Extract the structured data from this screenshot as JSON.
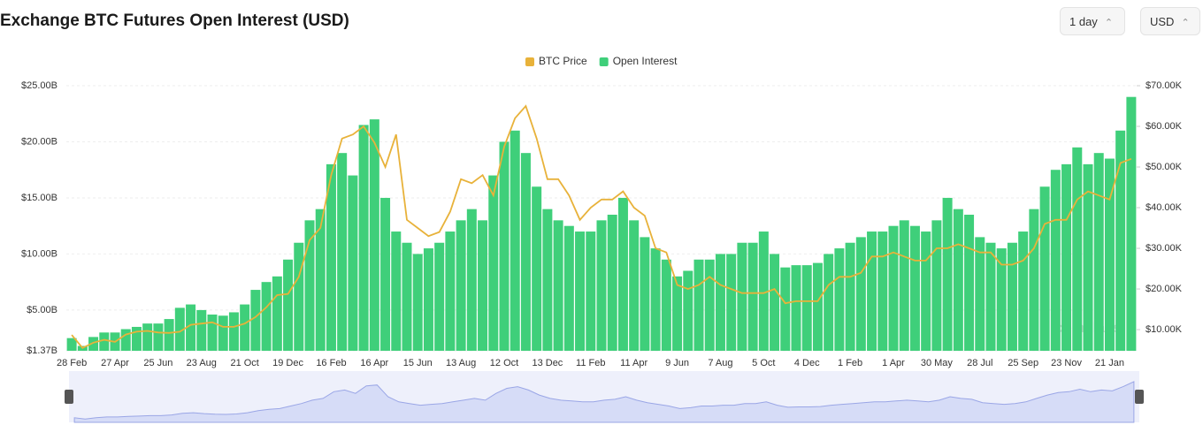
{
  "chart_data": {
    "type": "bar-line",
    "title": "Exchange BTC Futures Open Interest (USD)",
    "controls": {
      "interval": "1 day",
      "currency": "USD"
    },
    "watermark": "coinglass",
    "legend": "top",
    "categories": [
      "28 Feb",
      null,
      null,
      null,
      "27 Apr",
      null,
      null,
      null,
      "25 Jun",
      null,
      null,
      null,
      "23 Aug",
      null,
      null,
      null,
      "21 Oct",
      null,
      null,
      null,
      "19 Dec",
      null,
      null,
      null,
      "16 Feb",
      null,
      null,
      null,
      "16 Apr",
      null,
      null,
      null,
      "15 Jun",
      null,
      null,
      null,
      "13 Aug",
      null,
      null,
      null,
      "12 Oct",
      null,
      null,
      null,
      "13 Dec",
      null,
      null,
      null,
      "11 Feb",
      null,
      null,
      null,
      "11 Apr",
      null,
      null,
      null,
      "9 Jun",
      null,
      null,
      null,
      "7 Aug",
      null,
      null,
      null,
      "5 Oct",
      null,
      null,
      null,
      "4 Dec",
      null,
      null,
      null,
      "1 Feb",
      null,
      null,
      null,
      "1 Apr",
      null,
      null,
      null,
      "30 May",
      null,
      null,
      null,
      "28 Jul",
      null,
      null,
      null,
      "25 Sep",
      null,
      null,
      null,
      "23 Nov",
      null,
      null,
      null,
      "21 Jan",
      null,
      null
    ],
    "series": [
      {
        "name": "BTC Price",
        "color": "#e8b23a",
        "axis": "y2",
        "values": [
          8.7,
          5.5,
          6.8,
          7.5,
          7.0,
          8.8,
          9.5,
          9.7,
          9.3,
          9.2,
          9.5,
          11.2,
          11.5,
          11.8,
          10.7,
          10.7,
          11.5,
          13.1,
          15.5,
          18.5,
          18.8,
          23,
          32,
          35,
          48,
          57,
          58,
          60,
          56,
          50,
          58,
          37,
          35,
          33,
          34,
          39,
          47,
          46,
          48,
          43,
          55,
          62,
          65,
          57,
          47,
          47,
          43,
          37,
          40,
          42,
          42,
          44,
          40,
          38,
          30,
          29,
          21,
          20,
          21,
          23,
          21,
          20,
          19,
          19,
          19,
          20,
          16.5,
          17,
          17,
          17,
          21,
          23,
          23,
          24,
          28,
          28,
          29,
          28,
          27,
          27,
          30,
          30,
          31,
          30,
          29,
          29,
          26,
          26,
          27,
          30,
          36,
          37,
          37,
          42,
          44,
          43,
          42,
          51,
          52
        ]
      },
      {
        "name": "Open Interest",
        "color": "#3fcf7a",
        "axis": "y",
        "values": [
          2.5,
          1.8,
          2.6,
          3.0,
          3.0,
          3.3,
          3.5,
          3.8,
          3.8,
          4.2,
          5.2,
          5.5,
          5.0,
          4.6,
          4.5,
          4.8,
          5.5,
          6.8,
          7.5,
          8.0,
          9.5,
          11,
          13,
          14,
          18,
          19,
          17,
          21.5,
          22,
          15,
          12,
          11,
          10,
          10.5,
          11,
          12,
          13,
          14,
          13,
          17,
          20,
          21,
          19,
          16,
          14,
          13,
          12.5,
          12,
          12,
          13,
          13.5,
          15,
          13,
          11.5,
          10.5,
          9.5,
          8,
          8.5,
          9.5,
          9.5,
          10,
          10,
          11,
          11,
          12,
          10,
          8.8,
          9,
          9,
          9.2,
          10,
          10.5,
          11,
          11.5,
          12,
          12,
          12.5,
          13,
          12.5,
          12,
          13,
          15,
          14,
          13.5,
          11.5,
          11,
          10.5,
          11,
          12,
          14,
          16,
          17.5,
          18,
          19.5,
          18,
          19,
          18.5,
          21,
          24
        ]
      }
    ],
    "ylim": [
      1.37,
      25
    ],
    "yticks": [
      {
        "value": 1.37,
        "label": "$1.37B"
      },
      {
        "value": 5,
        "label": "$5.00B"
      },
      {
        "value": 10,
        "label": "$10.00B"
      },
      {
        "value": 15,
        "label": "$15.00B"
      },
      {
        "value": 20,
        "label": "$20.00B"
      },
      {
        "value": 25,
        "label": "$25.00B"
      }
    ],
    "y2lim": [
      4.8,
      70
    ],
    "y2ticks": [
      {
        "value": 10,
        "label": "$10.00K"
      },
      {
        "value": 20,
        "label": "$20.00K"
      },
      {
        "value": 30,
        "label": "$30.00K"
      },
      {
        "value": 40,
        "label": "$40.00K"
      },
      {
        "value": 50,
        "label": "$50.00K"
      },
      {
        "value": 60,
        "label": "$60.00K"
      },
      {
        "value": 70,
        "label": "$70.00K"
      }
    ],
    "grid": true
  }
}
